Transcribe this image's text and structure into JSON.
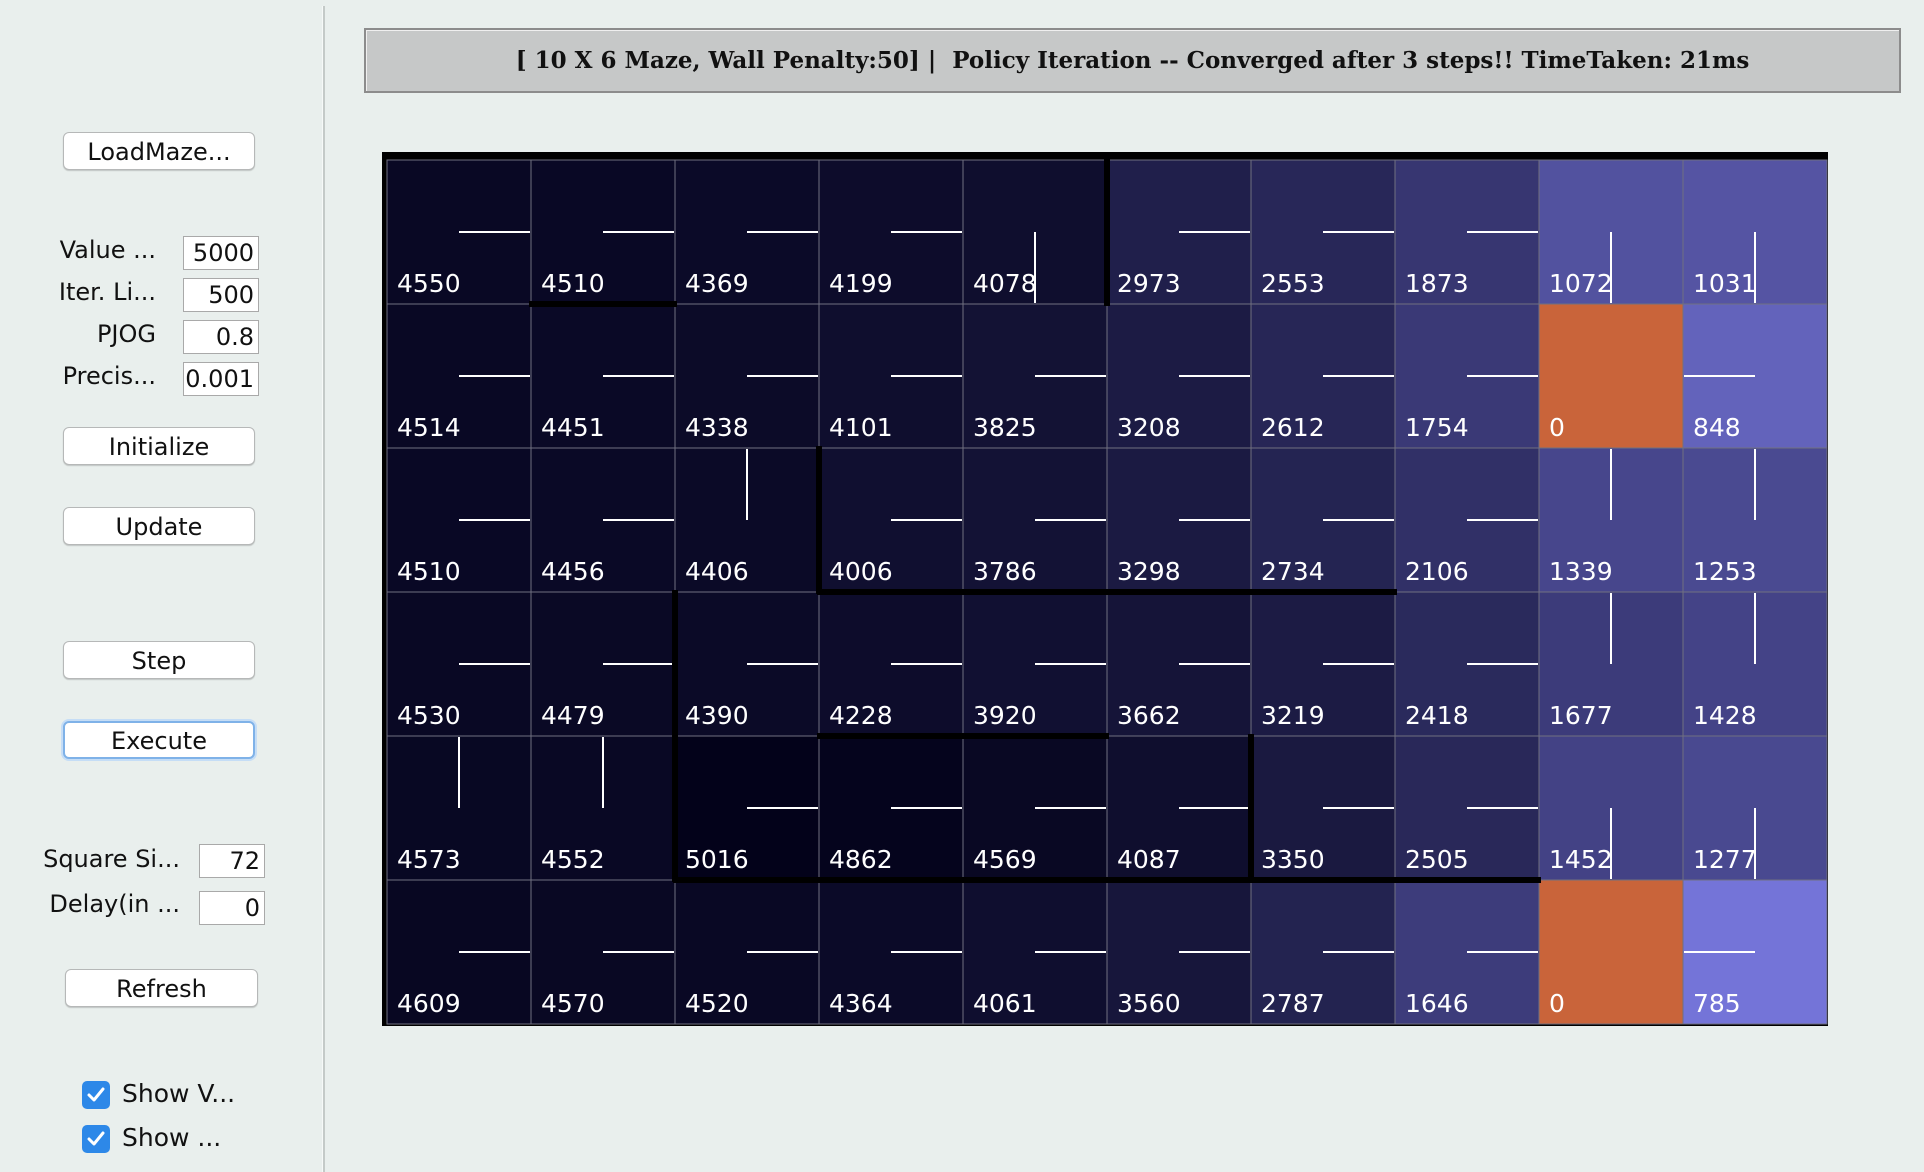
{
  "sidebar": {
    "load_button": "LoadMaze...",
    "params": [
      {
        "label": "Value ...",
        "value": "5000"
      },
      {
        "label": "Iter. Li...",
        "value": "500"
      },
      {
        "label": "PJOG",
        "value": "0.8"
      },
      {
        "label": "Precis...",
        "value": "0.001"
      }
    ],
    "initialize_button": "Initialize",
    "update_button": "Update",
    "step_button": "Step",
    "execute_button": "Execute",
    "square_size": {
      "label": "Square Si...",
      "value": "72"
    },
    "delay": {
      "label": "Delay(in ...",
      "value": "0"
    },
    "refresh_button": "Refresh",
    "checkboxes": [
      {
        "label": "Show V...",
        "checked": true
      },
      {
        "label": "Show ...",
        "checked": true
      }
    ]
  },
  "header": {
    "title": "[ 10 X 6 Maze, Wall Penalty:50] |  Policy Iteration -- Converged after 3 steps!! TimeTaken: 21ms"
  },
  "maze": {
    "cols": 10,
    "rows": 6,
    "colors": {
      "goal": "#c9643a",
      "low_value": "#7474d8",
      "high_value": "#03021a",
      "policy_line": "#ffffff",
      "cell_text": "#ffffff"
    },
    "values": [
      [
        4550,
        4510,
        4369,
        4199,
        4078,
        2973,
        2553,
        1873,
        1072,
        1031
      ],
      [
        4514,
        4451,
        4338,
        4101,
        3825,
        3208,
        2612,
        1754,
        0,
        848
      ],
      [
        4510,
        4456,
        4406,
        4006,
        3786,
        3298,
        2734,
        2106,
        1339,
        1253
      ],
      [
        4530,
        4479,
        4390,
        4228,
        3920,
        3662,
        3219,
        2418,
        1677,
        1428
      ],
      [
        4573,
        4552,
        5016,
        4862,
        4569,
        4087,
        3350,
        2505,
        1452,
        1277
      ],
      [
        4609,
        4570,
        4520,
        4364,
        4061,
        3560,
        2787,
        1646,
        0,
        785
      ]
    ],
    "policy": [
      [
        "right",
        "right",
        "right",
        "right",
        "down",
        "right",
        "right",
        "right",
        "down",
        "down"
      ],
      [
        "right",
        "right",
        "right",
        "right",
        "right",
        "right",
        "right",
        "right",
        "none",
        "left"
      ],
      [
        "right",
        "right",
        "up",
        "right",
        "right",
        "right",
        "right",
        "right",
        "up",
        "up"
      ],
      [
        "right",
        "right",
        "right",
        "right",
        "right",
        "right",
        "right",
        "right",
        "up",
        "up"
      ],
      [
        "up",
        "up",
        "right",
        "right",
        "right",
        "right",
        "right",
        "right",
        "down",
        "down"
      ],
      [
        "right",
        "right",
        "right",
        "right",
        "right",
        "right",
        "right",
        "right",
        "none",
        "left"
      ]
    ],
    "goal_cells": [
      [
        1,
        8
      ],
      [
        5,
        8
      ]
    ],
    "walls": {
      "bottom": [
        [
          0,
          1
        ],
        [
          2,
          3
        ],
        [
          2,
          4
        ],
        [
          2,
          5
        ],
        [
          2,
          6
        ],
        [
          3,
          3
        ],
        [
          3,
          4
        ],
        [
          4,
          2
        ],
        [
          4,
          3
        ],
        [
          4,
          4
        ],
        [
          4,
          5
        ],
        [
          4,
          6
        ],
        [
          4,
          7
        ]
      ],
      "right": [
        [
          0,
          4
        ],
        [
          2,
          2
        ],
        [
          3,
          1
        ],
        [
          4,
          1
        ],
        [
          4,
          5
        ]
      ]
    }
  }
}
